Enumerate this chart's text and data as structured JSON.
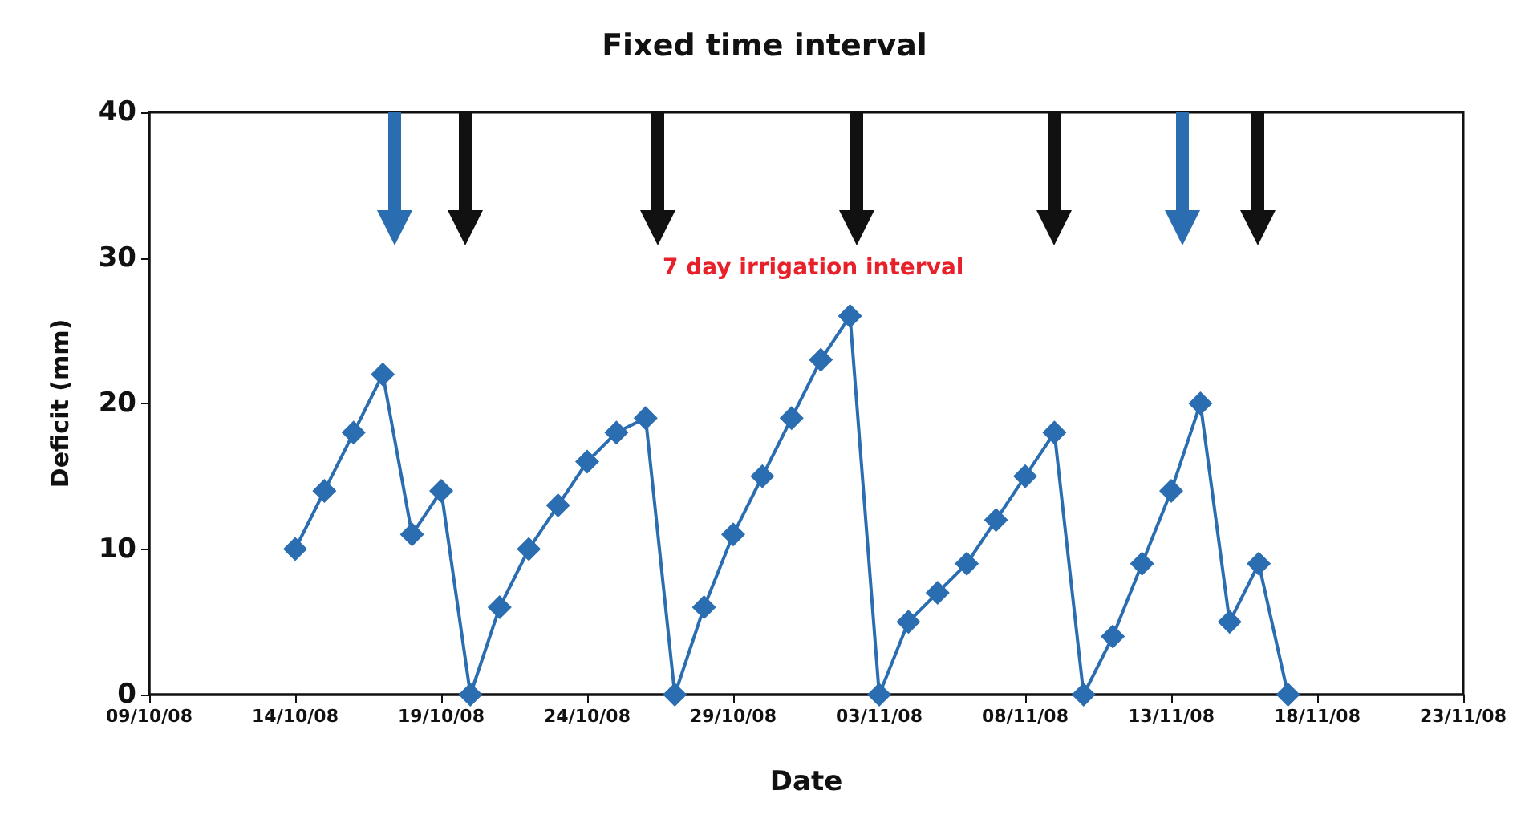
{
  "chart_data": {
    "type": "line",
    "title": "Fixed time interval",
    "xlabel": "Date",
    "ylabel": "Deficit (mm)",
    "annotations": [
      "7 day irrigation interval"
    ],
    "xlim": [
      "--10-09",
      "--11-23"
    ],
    "xticks": [
      {
        "value": "--10-09",
        "label": "09/10/08"
      },
      {
        "value": "--10-14",
        "label": "14/10/08"
      },
      {
        "value": "--10-19",
        "label": "19/10/08"
      },
      {
        "value": "--10-24",
        "label": "24/10/08"
      },
      {
        "value": "--10-29",
        "label": "29/10/08"
      },
      {
        "value": "--11-03",
        "label": "03/11/08"
      },
      {
        "value": "--11-08",
        "label": "08/11/08"
      },
      {
        "value": "--11-13",
        "label": "13/11/08"
      },
      {
        "value": "--11-18",
        "label": "18/11/08"
      },
      {
        "value": "--11-23",
        "label": "23/11/08"
      }
    ],
    "ylim": [
      0,
      40
    ],
    "yticks": [
      0,
      10,
      20,
      30,
      40
    ],
    "grid": false,
    "marker": "diamond",
    "line_style": "solid",
    "x": [
      "--10-14",
      "--10-15",
      "--10-16",
      "--10-17",
      "--10-18",
      "--10-19",
      "--10-20",
      "--10-21",
      "--10-22",
      "--10-23",
      "--10-24",
      "--10-25",
      "--10-26",
      "--10-27",
      "--10-28",
      "--10-29",
      "--10-30",
      "--10-31",
      "--11-01",
      "--11-02",
      "--11-03",
      "--11-04",
      "--11-05",
      "--11-06",
      "--11-07",
      "--11-08",
      "--11-09",
      "--11-10",
      "--11-11",
      "--11-12",
      "--11-13",
      "--11-14",
      "--11-15",
      "--11-16",
      "--11-17"
    ],
    "series": [
      {
        "color": "#2a6db0",
        "values": [
          10,
          14,
          18,
          22,
          11,
          14,
          0,
          6,
          10,
          13,
          16,
          18,
          19,
          0,
          6,
          11,
          15,
          19,
          23,
          26,
          0,
          5,
          7,
          9,
          12,
          15,
          18,
          0,
          4,
          9,
          14,
          20,
          5,
          9,
          0
        ]
      }
    ]
  }
}
